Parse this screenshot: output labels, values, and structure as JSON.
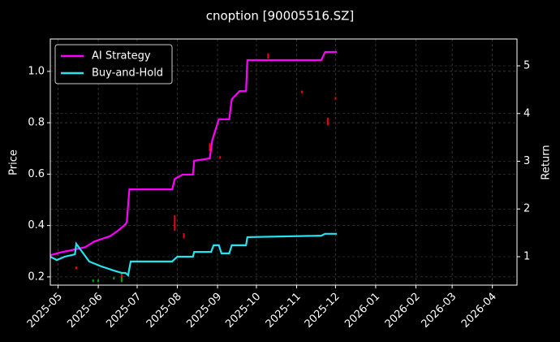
{
  "chart_data": {
    "type": "line",
    "title": "cnoption [90005516.SZ]",
    "y_label": "Price",
    "y2_label": "Return",
    "xlim": [
      -6,
      354
    ],
    "xticks": [
      {
        "value": 0,
        "label": "2025-05"
      },
      {
        "value": 31,
        "label": "2025-06"
      },
      {
        "value": 61,
        "label": "2025-07"
      },
      {
        "value": 92,
        "label": "2025-08"
      },
      {
        "value": 123,
        "label": "2025-09"
      },
      {
        "value": 153,
        "label": "2025-10"
      },
      {
        "value": 184,
        "label": "2025-11"
      },
      {
        "value": 214,
        "label": "2025-12"
      },
      {
        "value": 245,
        "label": "2026-01"
      },
      {
        "value": 276,
        "label": "2026-02"
      },
      {
        "value": 304,
        "label": "2026-03"
      },
      {
        "value": 335,
        "label": "2026-04"
      }
    ],
    "ylim": [
      0.168,
      1.126
    ],
    "yticks": [
      0.2,
      0.4,
      0.6,
      0.8,
      {
        "value": 1.0,
        "label": "1.0"
      }
    ],
    "y2lim": [
      0.404,
      5.562
    ],
    "y2ticks": [
      1,
      2,
      3,
      4,
      5
    ],
    "grid": true,
    "legend": "upper left",
    "candles": [
      {
        "color": "#ff0000",
        "x": [
          14,
          49,
          90,
          97,
          117,
          125,
          162,
          188,
          208,
          214
        ],
        "low": [
          0.23,
          0.197,
          0.38,
          0.35,
          0.69,
          0.66,
          1.05,
          0.915,
          0.79,
          0.89
        ],
        "high": [
          0.24,
          0.216,
          0.44,
          0.37,
          0.72,
          0.67,
          1.07,
          0.925,
          0.82,
          0.9
        ]
      },
      {
        "color": "#00aa00",
        "x": [
          27,
          31,
          43,
          49
        ],
        "low": [
          0.18,
          0.18,
          0.19,
          0.18
        ],
        "high": [
          0.19,
          0.19,
          0.2,
          0.2
        ]
      }
    ],
    "series": [
      {
        "name": "AI Strategy",
        "color": "#ff00ff",
        "axis": "y2",
        "x": [
          -6,
          2,
          11,
          21,
          28,
          40,
          46,
          52,
          53,
          55,
          88,
          90,
          96,
          104,
          105,
          117,
          119,
          124,
          132,
          134,
          140,
          145,
          146,
          203,
          206,
          215
        ],
        "values": [
          1.03,
          1.09,
          1.14,
          1.2,
          1.32,
          1.43,
          1.54,
          1.68,
          1.73,
          2.41,
          2.41,
          2.63,
          2.72,
          2.72,
          3.01,
          3.06,
          3.45,
          3.88,
          3.88,
          4.3,
          4.47,
          4.47,
          5.12,
          5.12,
          5.29,
          5.29
        ]
      },
      {
        "name": "Buy-and-Hold",
        "color": "#22e5f0",
        "axis": "y2",
        "x": [
          -6,
          -1,
          5,
          13,
          14,
          24,
          33,
          43,
          49,
          52,
          54,
          56,
          88,
          92,
          104,
          105,
          118,
          120,
          124,
          126,
          132,
          134,
          145,
          146,
          203,
          206,
          215
        ],
        "values": [
          1.0,
          0.93,
          1.0,
          1.05,
          1.27,
          0.9,
          0.8,
          0.71,
          0.66,
          0.66,
          0.61,
          0.9,
          0.9,
          1.0,
          1.0,
          1.1,
          1.1,
          1.24,
          1.24,
          1.07,
          1.07,
          1.24,
          1.24,
          1.41,
          1.44,
          1.48,
          1.48
        ]
      }
    ]
  }
}
